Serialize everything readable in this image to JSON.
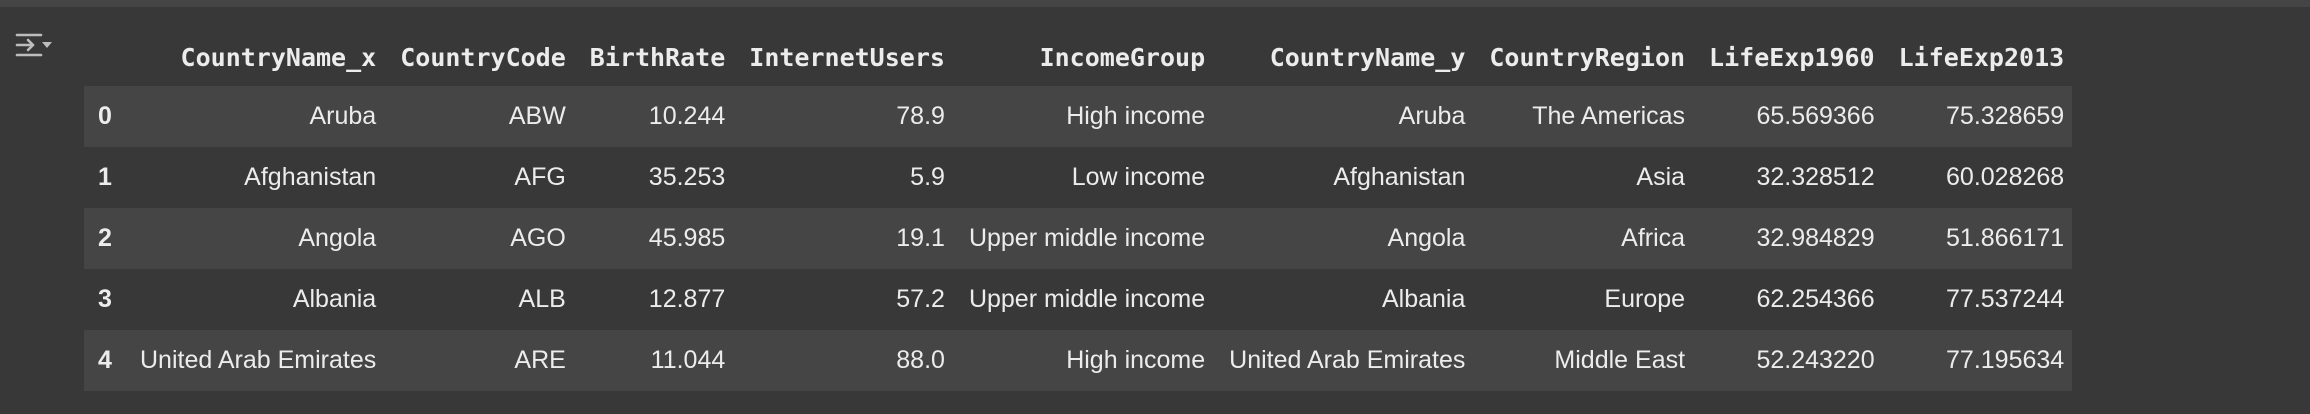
{
  "output": {
    "icon": "output-options-icon"
  },
  "table": {
    "columns": [
      "CountryName_x",
      "CountryCode",
      "BirthRate",
      "InternetUsers",
      "IncomeGroup",
      "CountryName_y",
      "CountryRegion",
      "LifeExp1960",
      "LifeExp2013"
    ],
    "rows": [
      {
        "index": "0",
        "cells": [
          "Aruba",
          "ABW",
          "10.244",
          "78.9",
          "High income",
          "Aruba",
          "The Americas",
          "65.569366",
          "75.328659"
        ]
      },
      {
        "index": "1",
        "cells": [
          "Afghanistan",
          "AFG",
          "35.253",
          "5.9",
          "Low income",
          "Afghanistan",
          "Asia",
          "32.328512",
          "60.028268"
        ]
      },
      {
        "index": "2",
        "cells": [
          "Angola",
          "AGO",
          "45.985",
          "19.1",
          "Upper middle income",
          "Angola",
          "Africa",
          "32.984829",
          "51.866171"
        ]
      },
      {
        "index": "3",
        "cells": [
          "Albania",
          "ALB",
          "12.877",
          "57.2",
          "Upper middle income",
          "Albania",
          "Europe",
          "62.254366",
          "77.537244"
        ]
      },
      {
        "index": "4",
        "cells": [
          "United Arab Emirates",
          "ARE",
          "11.044",
          "88.0",
          "High income",
          "United Arab Emirates",
          "Middle East",
          "52.243220",
          "77.195634"
        ]
      }
    ]
  }
}
